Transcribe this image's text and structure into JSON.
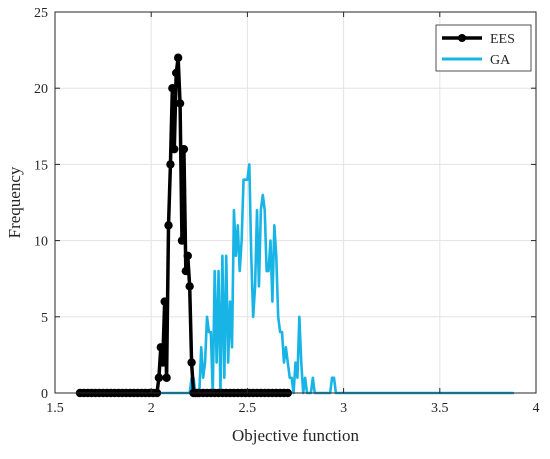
{
  "chart_data": {
    "type": "line",
    "xlabel": "Objective function",
    "ylabel": "Frequency",
    "xlim": [
      1.5,
      4
    ],
    "ylim": [
      0,
      25
    ],
    "xticks": [
      1.5,
      2,
      2.5,
      3,
      3.5,
      4
    ],
    "xtick_labels": [
      "1.5",
      "2",
      "2.5",
      "3",
      "3.5",
      "4"
    ],
    "yticks": [
      0,
      5,
      10,
      15,
      20,
      25
    ],
    "ytick_labels": [
      "0",
      "5",
      "10",
      "15",
      "20",
      "25"
    ],
    "grid": true,
    "legend_position": "top-right",
    "series": [
      {
        "name": "EES",
        "color": "#000000",
        "marker": "circle",
        "x": [
          1.63,
          1.65,
          1.67,
          1.69,
          1.71,
          1.73,
          1.75,
          1.77,
          1.79,
          1.81,
          1.83,
          1.85,
          1.87,
          1.89,
          1.91,
          1.93,
          1.95,
          1.97,
          1.99,
          2.01,
          2.03,
          2.04,
          2.05,
          2.06,
          2.07,
          2.08,
          2.09,
          2.1,
          2.11,
          2.12,
          2.13,
          2.14,
          2.15,
          2.16,
          2.17,
          2.18,
          2.19,
          2.2,
          2.21,
          2.22,
          2.23,
          2.24,
          2.25,
          2.27,
          2.29,
          2.31,
          2.33,
          2.35,
          2.37,
          2.39,
          2.41,
          2.43,
          2.45,
          2.47,
          2.49,
          2.51,
          2.53,
          2.55,
          2.57,
          2.59,
          2.61,
          2.63,
          2.65,
          2.67,
          2.69,
          2.71
        ],
        "y": [
          0,
          0,
          0,
          0,
          0,
          0,
          0,
          0,
          0,
          0,
          0,
          0,
          0,
          0,
          0,
          0,
          0,
          0,
          0,
          0,
          0,
          1,
          3,
          2,
          6,
          1,
          11,
          15,
          20,
          16,
          21,
          22,
          19,
          10,
          16,
          8,
          9,
          7,
          2,
          0,
          0,
          0,
          0,
          0,
          0,
          0,
          0,
          0,
          0,
          0,
          0,
          0,
          0,
          0,
          0,
          0,
          0,
          0,
          0,
          0,
          0,
          0,
          0,
          0,
          0,
          0
        ]
      },
      {
        "name": "GA",
        "color": "#18b4e6",
        "marker": "none",
        "x": [
          1.76,
          2.04,
          2.06,
          2.08,
          2.1,
          2.12,
          2.14,
          2.16,
          2.18,
          2.2,
          2.21,
          2.22,
          2.23,
          2.24,
          2.25,
          2.26,
          2.27,
          2.28,
          2.29,
          2.3,
          2.31,
          2.32,
          2.33,
          2.34,
          2.35,
          2.36,
          2.37,
          2.38,
          2.39,
          2.4,
          2.41,
          2.42,
          2.43,
          2.44,
          2.45,
          2.46,
          2.47,
          2.48,
          2.49,
          2.5,
          2.51,
          2.52,
          2.53,
          2.54,
          2.55,
          2.56,
          2.57,
          2.58,
          2.59,
          2.6,
          2.61,
          2.62,
          2.63,
          2.64,
          2.65,
          2.66,
          2.67,
          2.68,
          2.69,
          2.7,
          2.71,
          2.72,
          2.73,
          2.74,
          2.75,
          2.76,
          2.77,
          2.78,
          2.79,
          2.8,
          2.81,
          2.82,
          2.83,
          2.84,
          2.85,
          2.86,
          2.87,
          2.88,
          2.89,
          2.9,
          2.91,
          2.92,
          2.93,
          2.94,
          2.95,
          2.96,
          2.97,
          2.98,
          2.99,
          3.0,
          3.01,
          3.02,
          3.05,
          3.1,
          3.14,
          3.15,
          3.16,
          3.17,
          3.18,
          3.19,
          3.2,
          3.21,
          3.22,
          3.23,
          3.24,
          3.25,
          3.3,
          3.4,
          3.5,
          3.6,
          3.7,
          3.8,
          3.88
        ],
        "y": [
          0,
          0,
          0,
          0,
          0,
          0,
          0,
          0,
          0,
          0,
          1,
          1,
          0,
          0,
          0,
          3,
          1,
          2,
          5,
          4,
          4,
          0,
          8,
          2,
          8,
          0,
          9,
          1,
          9,
          2,
          6,
          3,
          12,
          9,
          11,
          8,
          10,
          14,
          14,
          14,
          15,
          9,
          5,
          7,
          12,
          7,
          12,
          13,
          12,
          8,
          8,
          10,
          6,
          11,
          9,
          5,
          4,
          4,
          2,
          3,
          2,
          1,
          1,
          0,
          2,
          1,
          5,
          2,
          0,
          1,
          0,
          0,
          0,
          1,
          0,
          0,
          0,
          0,
          0,
          0,
          0,
          0,
          0,
          1,
          1,
          0,
          0,
          0,
          0,
          0,
          0,
          0,
          0,
          0,
          0,
          0,
          0,
          0,
          0,
          0,
          0,
          0,
          0,
          0,
          0,
          0,
          0,
          0,
          0,
          0,
          0,
          0,
          0
        ]
      }
    ]
  }
}
